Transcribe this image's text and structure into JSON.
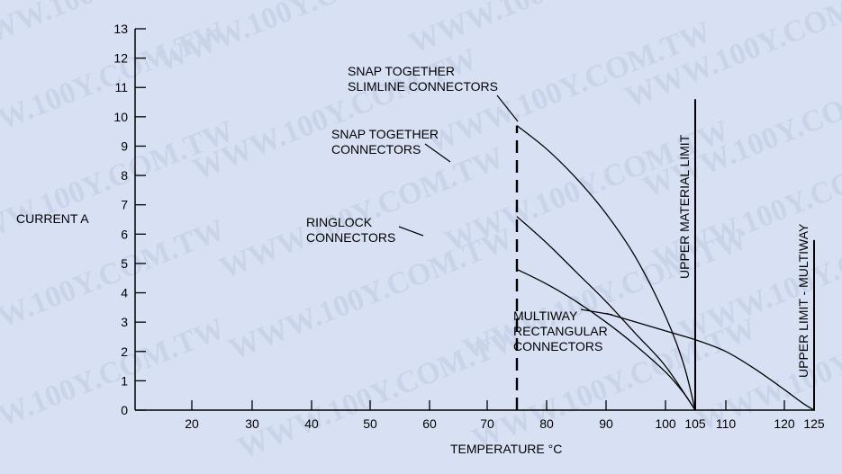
{
  "watermark": "WWW.100Y.COM.TW",
  "chart_data": {
    "type": "line",
    "xlabel": "TEMPERATURE °C",
    "ylabel": "CURRENT A",
    "xlim": [
      10,
      125
    ],
    "ylim": [
      0,
      13
    ],
    "x_ticks": [
      20,
      30,
      40,
      50,
      60,
      70,
      80,
      90,
      100,
      105,
      110,
      120,
      125
    ],
    "y_ticks": [
      0,
      1,
      2,
      3,
      4,
      5,
      6,
      7,
      8,
      9,
      10,
      11,
      12,
      13
    ],
    "grid": false,
    "series": [
      {
        "name": "SNAP TOGETHER SLIMLINE CONNECTORS",
        "label_lines": [
          "SNAP TOGETHER",
          "SLIMLINE CONNECTORS"
        ],
        "points": [
          [
            75,
            9.7
          ],
          [
            80,
            8.9
          ],
          [
            85,
            7.9
          ],
          [
            90,
            6.7
          ],
          [
            95,
            5.2
          ],
          [
            100,
            3.2
          ],
          [
            103,
            1.6
          ],
          [
            105,
            0
          ]
        ]
      },
      {
        "name": "SNAP TOGETHER CONNECTORS",
        "label_lines": [
          "SNAP TOGETHER",
          "CONNECTORS"
        ],
        "points": [
          [
            75,
            6.6
          ],
          [
            80,
            5.7
          ],
          [
            85,
            4.7
          ],
          [
            90,
            3.7
          ],
          [
            95,
            2.6
          ],
          [
            100,
            1.5
          ],
          [
            105,
            0
          ]
        ]
      },
      {
        "name": "RINGLOCK CONNECTORS",
        "label_lines": [
          "RINGLOCK",
          "CONNECTORS"
        ],
        "points": [
          [
            75,
            4.8
          ],
          [
            80,
            4.3
          ],
          [
            85,
            3.7
          ],
          [
            90,
            3.0
          ],
          [
            95,
            2.2
          ],
          [
            100,
            1.3
          ],
          [
            103,
            0.6
          ],
          [
            105,
            0
          ]
        ]
      },
      {
        "name": "MULTIWAY RECTANGULAR CONNECTORS",
        "label_lines": [
          "MULTIWAY",
          "RECTANGULAR",
          "CONNECTORS"
        ],
        "points": [
          [
            90,
            3.3
          ],
          [
            100,
            2.7
          ],
          [
            105,
            2.4
          ],
          [
            110,
            2.0
          ],
          [
            115,
            1.4
          ],
          [
            120,
            0.7
          ],
          [
            123,
            0.25
          ],
          [
            125,
            0
          ]
        ]
      }
    ],
    "reference_lines": [
      {
        "type": "dashed",
        "x": 75,
        "y_top": 9.7
      },
      {
        "type": "solid",
        "x": 105,
        "y_top": 10.6,
        "label": "UPPER MATERIAL LIMIT"
      },
      {
        "type": "solid",
        "x": 125,
        "y_top": 5.8,
        "label": "UPPER LIMIT - MULTIWAY"
      }
    ]
  }
}
